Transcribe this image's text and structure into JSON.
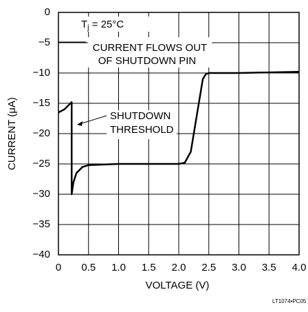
{
  "chart_data": {
    "type": "line",
    "xlabel": "VOLTAGE (V)",
    "ylabel": "CURRENT (μA)",
    "x": [
      0,
      0.1,
      0.2,
      0.22,
      0.22,
      0.25,
      0.3,
      0.4,
      0.5,
      1.0,
      1.5,
      2.0,
      2.1,
      2.2,
      2.3,
      2.4,
      2.45,
      2.5,
      3.0,
      3.5,
      4.0
    ],
    "series": [
      {
        "color": "#000000",
        "values": [
          -16.5,
          -16,
          -15,
          -14.8,
          -30,
          -28,
          -26.5,
          -25.5,
          -25.2,
          -25,
          -25,
          -25,
          -24.8,
          -23,
          -17,
          -11,
          -10.2,
          -10,
          -10,
          -9.9,
          -9.8
        ]
      }
    ],
    "xlim": [
      0,
      4
    ],
    "xticks": [
      0,
      0.5,
      {
        "value": 1,
        "label": "1.0"
      },
      1.5,
      {
        "value": 2,
        "label": "2.0"
      },
      2.5,
      {
        "value": 3,
        "label": "3.0"
      },
      3.5,
      {
        "value": 4,
        "label": "4.0"
      }
    ],
    "ylim": [
      -40,
      0
    ],
    "yticks": [
      0,
      {
        "value": -5,
        "label": "−5"
      },
      {
        "value": -10,
        "label": "−10"
      },
      {
        "value": -15,
        "label": "−15"
      },
      {
        "value": -20,
        "label": "−20"
      },
      {
        "value": -25,
        "label": "−25"
      },
      {
        "value": -30,
        "label": "−30"
      },
      {
        "value": -35,
        "label": "−35"
      },
      {
        "value": -40,
        "label": "−40"
      }
    ],
    "grid": true,
    "annotations": {
      "tj": [
        "T",
        "j",
        " = 25°C"
      ],
      "flow": [
        "CURRENT FLOWS OUT",
        "OF SHUTDOWN PIN"
      ],
      "threshold": [
        "SHUTDOWN",
        "THRESHOLD"
      ]
    },
    "code": "LT1074•PC05"
  }
}
